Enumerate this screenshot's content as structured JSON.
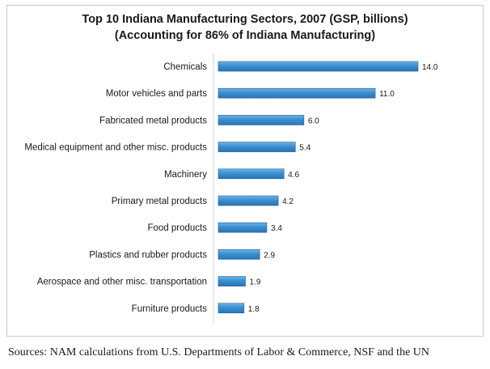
{
  "chart_data": {
    "type": "bar",
    "orientation": "horizontal",
    "title": "Top 10 Indiana Manufacturing Sectors, 2007 (GSP, billions)",
    "subtitle": "(Accounting for 86% of Indiana Manufacturing)",
    "categories": [
      "Chemicals",
      "Motor vehicles and parts",
      "Fabricated metal products",
      "Medical equipment and other misc. products",
      "Machinery",
      "Primary metal products",
      "Food products",
      "Plastics and rubber products",
      "Aerospace and other misc. transportation",
      "Furniture products"
    ],
    "values": [
      14.0,
      11.0,
      6.0,
      5.4,
      4.6,
      4.2,
      3.4,
      2.9,
      1.9,
      1.8
    ],
    "value_labels": [
      "14.0",
      "11.0",
      "6.0",
      "5.4",
      "4.6",
      "4.2",
      "3.4",
      "2.9",
      "1.9",
      "1.8"
    ],
    "xlim": [
      0,
      14.0
    ],
    "grid": false,
    "bar_color": "#3a8fd0",
    "bar_edge_color": "#1f5f99"
  },
  "source": "Sources:  NAM calculations from U.S. Departments of Labor & Commerce, NSF and the UN"
}
